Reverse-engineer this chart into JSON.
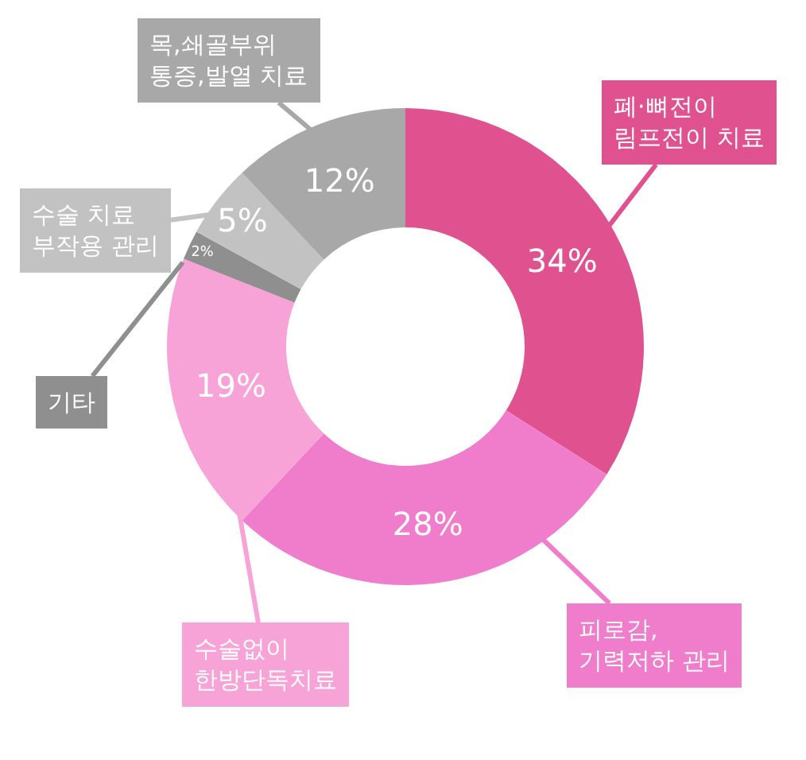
{
  "chart_data": {
    "type": "donut",
    "categories": [
      "폐·뼈전이\n림프전이 치료",
      "피로감,\n기력저하 관리",
      "수술없이\n한방단독치료",
      "기타",
      "수술 치료\n부작용 관리",
      "목,쇄골부위\n통증,발열 치료"
    ],
    "values": [
      34,
      28,
      19,
      2,
      5,
      12
    ],
    "colors": [
      "#e0528f",
      "#f07ccc",
      "#f7a3d8",
      "#8f8f8f",
      "#c2c2c2",
      "#a8a8a8"
    ],
    "value_labels": [
      "34%",
      "28%",
      "19%",
      "2%",
      "5%",
      "12%"
    ]
  }
}
